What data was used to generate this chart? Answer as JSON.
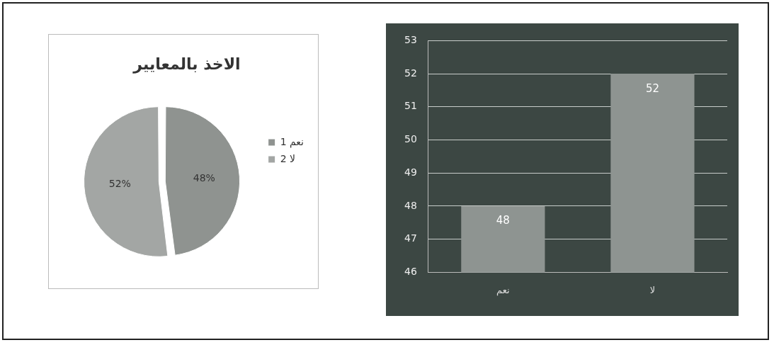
{
  "chart_data": [
    {
      "type": "pie",
      "title": "الاخذ بالمعايير",
      "categories": [
        "1 نعم",
        "2 لا"
      ],
      "values": [
        48,
        52
      ],
      "colors": [
        "#8f9390",
        "#a3a6a4"
      ],
      "value_labels": [
        "48%",
        "52%"
      ],
      "legend": "right"
    },
    {
      "type": "bar",
      "categories": [
        "نعم",
        "لا"
      ],
      "values": [
        48,
        52
      ],
      "color": "#8e9491",
      "ylim": [
        46,
        53
      ],
      "yticks": [
        46,
        47,
        48,
        49,
        50,
        51,
        52,
        53
      ],
      "grid": "y",
      "data_labels": true
    }
  ]
}
